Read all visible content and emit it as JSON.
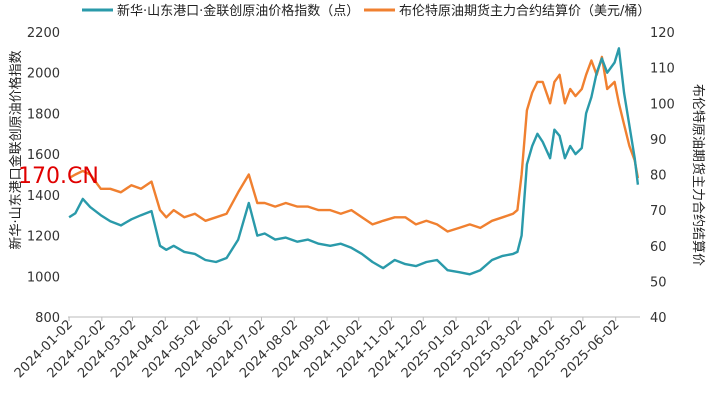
{
  "chart_data": {
    "type": "line",
    "watermark": "170.CN",
    "legend_position": "top",
    "grid": false,
    "x_ticks": [
      "2024-01-02",
      "2024-02-02",
      "2024-03-02",
      "2024-04-02",
      "2024-05-02",
      "2024-06-02",
      "2024-07-02",
      "2024-08-02",
      "2024-09-02",
      "2024-10-02",
      "2024-11-02",
      "2024-12-02",
      "2025-01-02",
      "2025-02-02",
      "2025-03-02",
      "2025-04-02",
      "2025-05-02",
      "2025-06-02"
    ],
    "xlim": [
      "2024-01-01",
      "2025-06-25"
    ],
    "y_left": {
      "label": "新华·山东港口金联创原油价格指数",
      "lim": [
        800,
        2200
      ],
      "ticks": [
        "800",
        "1000",
        "1200",
        "1400",
        "1600",
        "1800",
        "2000",
        "2200"
      ]
    },
    "y_right": {
      "label": "布伦特原油期货主力合约结算价",
      "lim": [
        40,
        120
      ],
      "ticks": [
        "40",
        "50",
        "60",
        "70",
        "80",
        "90",
        "100",
        "110",
        "120"
      ]
    },
    "series": [
      {
        "name": "新华·山东港口·金联创原油价格指数（点）",
        "axis": "left",
        "color": "#2a9aaa",
        "x": [
          "2024-01-02",
          "2024-01-08",
          "2024-01-15",
          "2024-01-22",
          "2024-02-01",
          "2024-02-10",
          "2024-02-20",
          "2024-03-01",
          "2024-03-10",
          "2024-03-20",
          "2024-03-28",
          "2024-04-03",
          "2024-04-10",
          "2024-04-20",
          "2024-04-30",
          "2024-05-10",
          "2024-05-20",
          "2024-05-30",
          "2024-06-10",
          "2024-06-20",
          "2024-06-28",
          "2024-07-05",
          "2024-07-15",
          "2024-07-25",
          "2024-08-05",
          "2024-08-15",
          "2024-08-25",
          "2024-09-05",
          "2024-09-15",
          "2024-09-25",
          "2024-10-05",
          "2024-10-15",
          "2024-10-25",
          "2024-11-05",
          "2024-11-15",
          "2024-11-25",
          "2024-12-05",
          "2024-12-15",
          "2024-12-25",
          "2025-01-05",
          "2025-01-15",
          "2025-01-25",
          "2025-02-05",
          "2025-02-15",
          "2025-02-25",
          "2025-03-01",
          "2025-03-05",
          "2025-03-10",
          "2025-03-15",
          "2025-03-20",
          "2025-03-25",
          "2025-04-01",
          "2025-04-05",
          "2025-04-10",
          "2025-04-15",
          "2025-04-20",
          "2025-04-25",
          "2025-05-01",
          "2025-05-05",
          "2025-05-10",
          "2025-05-15",
          "2025-05-20",
          "2025-05-25",
          "2025-06-01",
          "2025-06-05",
          "2025-06-10",
          "2025-06-15",
          "2025-06-20",
          "2025-06-23"
        ],
        "values": [
          1290,
          1310,
          1380,
          1340,
          1300,
          1270,
          1250,
          1280,
          1300,
          1320,
          1150,
          1130,
          1150,
          1120,
          1110,
          1080,
          1070,
          1090,
          1180,
          1360,
          1200,
          1210,
          1180,
          1190,
          1170,
          1180,
          1160,
          1150,
          1160,
          1140,
          1110,
          1070,
          1040,
          1080,
          1060,
          1050,
          1070,
          1080,
          1030,
          1020,
          1010,
          1030,
          1080,
          1100,
          1110,
          1120,
          1200,
          1550,
          1640,
          1700,
          1660,
          1580,
          1720,
          1690,
          1580,
          1640,
          1600,
          1630,
          1800,
          1880,
          2000,
          2070,
          2000,
          2050,
          2120,
          1900,
          1740,
          1580,
          1450
        ]
      },
      {
        "name": "布伦特原油期货主力合约结算价（美元/桶）",
        "axis": "right",
        "color": "#f08030",
        "x": [
          "2024-01-02",
          "2024-01-08",
          "2024-01-15",
          "2024-01-22",
          "2024-02-01",
          "2024-02-10",
          "2024-02-20",
          "2024-03-01",
          "2024-03-10",
          "2024-03-20",
          "2024-03-28",
          "2024-04-03",
          "2024-04-10",
          "2024-04-20",
          "2024-04-30",
          "2024-05-10",
          "2024-05-20",
          "2024-05-30",
          "2024-06-10",
          "2024-06-20",
          "2024-06-28",
          "2024-07-05",
          "2024-07-15",
          "2024-07-25",
          "2024-08-05",
          "2024-08-15",
          "2024-08-25",
          "2024-09-05",
          "2024-09-15",
          "2024-09-25",
          "2024-10-05",
          "2024-10-15",
          "2024-10-25",
          "2024-11-05",
          "2024-11-15",
          "2024-11-25",
          "2024-12-05",
          "2024-12-15",
          "2024-12-25",
          "2025-01-05",
          "2025-01-15",
          "2025-01-25",
          "2025-02-05",
          "2025-02-15",
          "2025-02-25",
          "2025-03-01",
          "2025-03-05",
          "2025-03-10",
          "2025-03-15",
          "2025-03-20",
          "2025-03-25",
          "2025-04-01",
          "2025-04-05",
          "2025-04-10",
          "2025-04-15",
          "2025-04-20",
          "2025-04-25",
          "2025-05-01",
          "2025-05-05",
          "2025-05-10",
          "2025-05-15",
          "2025-05-20",
          "2025-05-25",
          "2025-06-01",
          "2025-06-05",
          "2025-06-10",
          "2025-06-15",
          "2025-06-20",
          "2025-06-23"
        ],
        "values": [
          79,
          80,
          81,
          80,
          76,
          76,
          75,
          77,
          76,
          78,
          70,
          68,
          70,
          68,
          69,
          67,
          68,
          69,
          75,
          80,
          72,
          72,
          71,
          72,
          71,
          71,
          70,
          70,
          69,
          70,
          68,
          66,
          67,
          68,
          68,
          66,
          67,
          66,
          64,
          65,
          66,
          65,
          67,
          68,
          69,
          70,
          80,
          98,
          103,
          106,
          106,
          100,
          106,
          108,
          100,
          104,
          102,
          104,
          108,
          112,
          108,
          113,
          104,
          106,
          100,
          94,
          88,
          84,
          79
        ]
      }
    ]
  }
}
